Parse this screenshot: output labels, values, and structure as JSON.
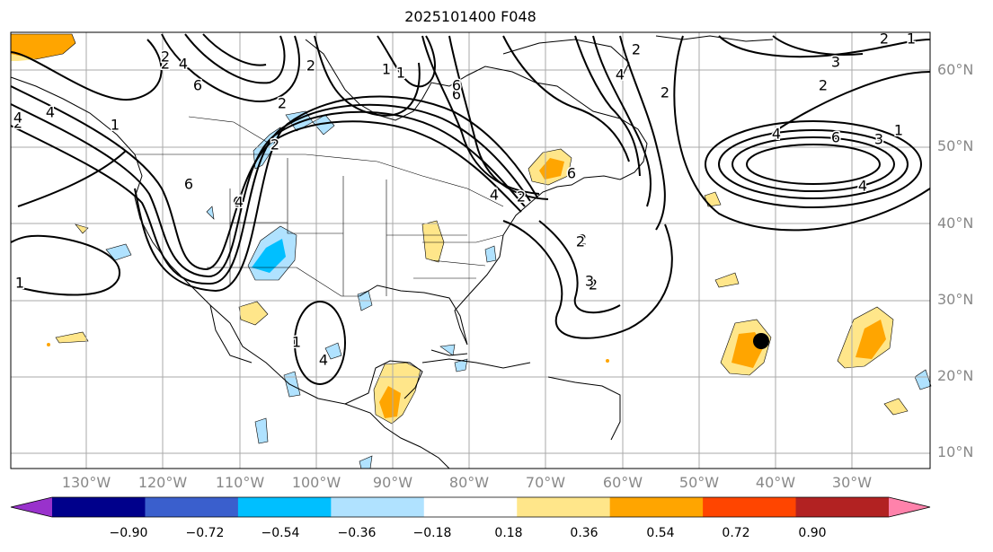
{
  "title": "2025101400 F048",
  "lat_labels": [
    "60°N",
    "50°N",
    "40°N",
    "30°N",
    "20°N",
    "10°N"
  ],
  "lon_labels": [
    "130°W",
    "120°W",
    "110°W",
    "100°W",
    "90°W",
    "80°W",
    "70°W",
    "60°W",
    "50°W",
    "40°W",
    "30°W"
  ],
  "colorbar": {
    "ticks": [
      "−0.90",
      "−0.72",
      "−0.54",
      "−0.36",
      "−0.18",
      "0.18",
      "0.36",
      "0.54",
      "0.72",
      "0.90"
    ],
    "colors": [
      "#9932cc",
      "#00008b",
      "#3a5fcd",
      "#00bfff",
      "#b0e2ff",
      "#ffffff",
      "#ffe68a",
      "#ffa500",
      "#ff4500",
      "#b22222",
      "#ff82ab"
    ]
  },
  "contour_labels": [
    "2",
    "4",
    "6",
    "1",
    "2",
    "1",
    "2",
    "4",
    "6",
    "4",
    "6",
    "4",
    "2",
    "1",
    "6",
    "2",
    "2",
    "1",
    "4",
    "2",
    "3",
    "2",
    "6",
    "4",
    "3",
    "1",
    "2",
    "2",
    "4",
    "6",
    "4",
    "2",
    "3",
    "2",
    "1",
    "1",
    "2",
    "4",
    "2",
    "6",
    "4"
  ],
  "marker": "storm-center-dot"
}
